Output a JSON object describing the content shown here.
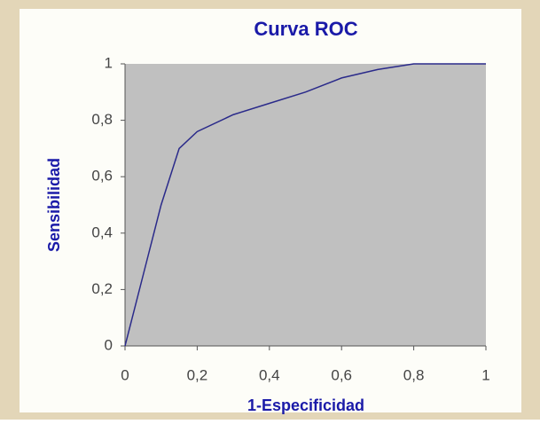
{
  "chart_data": {
    "type": "line",
    "title": "Curva ROC",
    "x_label": "1-Especificidad",
    "y_label": "Sensibilidad",
    "x": [
      0,
      0.05,
      0.1,
      0.15,
      0.2,
      0.3,
      0.4,
      0.5,
      0.6,
      0.7,
      0.8,
      0.9,
      1
    ],
    "series": [
      {
        "name": null,
        "color": "#2a2a8a",
        "values": [
          0,
          0.25,
          0.5,
          0.7,
          0.76,
          0.82,
          0.86,
          0.9,
          0.95,
          0.98,
          1,
          1,
          1
        ]
      }
    ],
    "xlim": [
      0,
      1
    ],
    "xticks": [
      0,
      {
        "value": 0.2,
        "label": "0,2"
      },
      {
        "value": 0.4,
        "label": "0,4"
      },
      {
        "value": 0.6,
        "label": "0,6"
      },
      {
        "value": 0.8,
        "label": "0,8"
      },
      1
    ],
    "ylim": [
      0,
      1
    ],
    "yticks": [
      0,
      {
        "value": 0.2,
        "label": "0,2"
      },
      {
        "value": 0.4,
        "label": "0,4"
      },
      {
        "value": 0.6,
        "label": "0,6"
      },
      {
        "value": 0.8,
        "label": "0,8"
      },
      1
    ],
    "plot_background": "#c0c0c0"
  }
}
